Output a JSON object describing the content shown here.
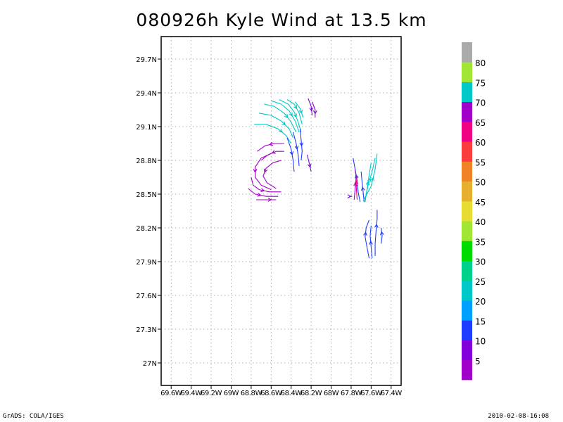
{
  "title": "080926h Kyle Wind at 13.5 km",
  "footer": {
    "left": "GrADS: COLA/IGES",
    "right": "2010-02-08-16:08"
  },
  "chart_data": {
    "type": "streamline",
    "title": "080926h Kyle Wind at 13.5 km",
    "xlim": [
      -69.7,
      -67.3
    ],
    "ylim": [
      26.8,
      29.9
    ],
    "grid": true,
    "x_ticks": [
      {
        "value": -69.6,
        "label": "69.6W"
      },
      {
        "value": -69.4,
        "label": "69.4W"
      },
      {
        "value": -69.2,
        "label": "69.2W"
      },
      {
        "value": -69.0,
        "label": "69W"
      },
      {
        "value": -68.8,
        "label": "68.8W"
      },
      {
        "value": -68.6,
        "label": "68.6W"
      },
      {
        "value": -68.4,
        "label": "68.4W"
      },
      {
        "value": -68.2,
        "label": "68.2W"
      },
      {
        "value": -68.0,
        "label": "68W"
      },
      {
        "value": -67.8,
        "label": "67.8W"
      },
      {
        "value": -67.6,
        "label": "67.6W"
      },
      {
        "value": -67.4,
        "label": "67.4W"
      }
    ],
    "y_ticks": [
      {
        "value": 27.0,
        "label": "27N"
      },
      {
        "value": 27.3,
        "label": "27.3N"
      },
      {
        "value": 27.6,
        "label": "27.6N"
      },
      {
        "value": 27.9,
        "label": "27.9N"
      },
      {
        "value": 28.2,
        "label": "28.2N"
      },
      {
        "value": 28.5,
        "label": "28.5N"
      },
      {
        "value": 28.8,
        "label": "28.8N"
      },
      {
        "value": 29.1,
        "label": "29.1N"
      },
      {
        "value": 29.4,
        "label": "29.4N"
      },
      {
        "value": 29.7,
        "label": "29.7N"
      }
    ],
    "colorbar": [
      {
        "color": "#a000c8",
        "label": "5"
      },
      {
        "color": "#8200dc",
        "label": "10"
      },
      {
        "color": "#1e3cff",
        "label": "15"
      },
      {
        "color": "#00a0ff",
        "label": "20"
      },
      {
        "color": "#00c8c8",
        "label": "25"
      },
      {
        "color": "#00d28c",
        "label": "30"
      },
      {
        "color": "#00dc00",
        "label": "35"
      },
      {
        "color": "#a0e632",
        "label": "40"
      },
      {
        "color": "#e6dc32",
        "label": "45"
      },
      {
        "color": "#e6af2d",
        "label": "50"
      },
      {
        "color": "#f08228",
        "label": "55"
      },
      {
        "color": "#fa3c3c",
        "label": "60"
      },
      {
        "color": "#f00082",
        "label": "65"
      },
      {
        "color": "#a000c8",
        "label": "70"
      },
      {
        "color": "#00c8c8",
        "label": "75"
      },
      {
        "color": "#a0e632",
        "label": "80"
      },
      {
        "color": "#aaaaaa",
        "label": ""
      }
    ],
    "streamlines": [
      {
        "color": "#00c8c8",
        "points": [
          [
            -68.77,
            29.12
          ],
          [
            -68.65,
            29.12
          ],
          [
            -68.53,
            29.08
          ],
          [
            -68.45,
            29.02
          ],
          [
            -68.4,
            28.95
          ]
        ]
      },
      {
        "color": "#00c8c8",
        "points": [
          [
            -68.72,
            29.22
          ],
          [
            -68.6,
            29.2
          ],
          [
            -68.5,
            29.15
          ],
          [
            -68.42,
            29.08
          ],
          [
            -68.38,
            29.0
          ]
        ]
      },
      {
        "color": "#00c8c8",
        "points": [
          [
            -68.67,
            29.3
          ],
          [
            -68.57,
            29.28
          ],
          [
            -68.47,
            29.22
          ],
          [
            -68.4,
            29.14
          ],
          [
            -68.35,
            29.05
          ]
        ]
      },
      {
        "color": "#00c8c8",
        "points": [
          [
            -68.6,
            29.33
          ],
          [
            -68.5,
            29.3
          ],
          [
            -68.42,
            29.24
          ],
          [
            -68.36,
            29.15
          ],
          [
            -68.32,
            29.05
          ]
        ]
      },
      {
        "color": "#00c8c8",
        "points": [
          [
            -68.52,
            29.34
          ],
          [
            -68.43,
            29.3
          ],
          [
            -68.37,
            29.23
          ],
          [
            -68.33,
            29.14
          ],
          [
            -68.3,
            29.05
          ]
        ]
      },
      {
        "color": "#00c8c8",
        "points": [
          [
            -68.44,
            29.34
          ],
          [
            -68.37,
            29.3
          ],
          [
            -68.32,
            29.22
          ],
          [
            -68.29,
            29.12
          ]
        ]
      },
      {
        "color": "#00c8c8",
        "points": [
          [
            -68.36,
            29.32
          ],
          [
            -68.31,
            29.26
          ],
          [
            -68.28,
            29.18
          ]
        ]
      },
      {
        "color": "#8200dc",
        "points": [
          [
            -68.23,
            29.35
          ],
          [
            -68.2,
            29.28
          ],
          [
            -68.19,
            29.2
          ]
        ]
      },
      {
        "color": "#8200dc",
        "points": [
          [
            -68.19,
            29.32
          ],
          [
            -68.16,
            29.25
          ],
          [
            -68.16,
            29.18
          ]
        ]
      },
      {
        "color": "#1e3cff",
        "points": [
          [
            -68.44,
            29.0
          ],
          [
            -68.4,
            28.9
          ],
          [
            -68.38,
            28.8
          ],
          [
            -68.37,
            28.7
          ]
        ]
      },
      {
        "color": "#1e3cff",
        "points": [
          [
            -68.38,
            29.05
          ],
          [
            -68.35,
            28.95
          ],
          [
            -68.33,
            28.85
          ],
          [
            -68.32,
            28.75
          ]
        ]
      },
      {
        "color": "#1e3cff",
        "points": [
          [
            -68.31,
            29.08
          ],
          [
            -68.3,
            28.98
          ],
          [
            -68.29,
            28.88
          ],
          [
            -68.3,
            28.8
          ]
        ]
      },
      {
        "color": "#8200dc",
        "points": [
          [
            -68.24,
            28.85
          ],
          [
            -68.22,
            28.78
          ],
          [
            -68.2,
            28.7
          ]
        ]
      },
      {
        "color": "#a000c8",
        "points": [
          [
            -68.47,
            28.95
          ],
          [
            -68.57,
            28.95
          ],
          [
            -68.66,
            28.93
          ],
          [
            -68.74,
            28.88
          ]
        ]
      },
      {
        "color": "#a000c8",
        "points": [
          [
            -68.47,
            28.88
          ],
          [
            -68.55,
            28.88
          ],
          [
            -68.63,
            28.85
          ],
          [
            -68.7,
            28.8
          ]
        ]
      },
      {
        "color": "#a000c8",
        "points": [
          [
            -68.5,
            28.8
          ],
          [
            -68.58,
            28.78
          ],
          [
            -68.65,
            28.73
          ],
          [
            -68.68,
            28.66
          ],
          [
            -68.64,
            28.6
          ],
          [
            -68.55,
            28.55
          ]
        ]
      },
      {
        "color": "#a000c8",
        "points": [
          [
            -68.6,
            28.86
          ],
          [
            -68.7,
            28.82
          ],
          [
            -68.76,
            28.74
          ],
          [
            -68.76,
            28.65
          ],
          [
            -68.7,
            28.58
          ],
          [
            -68.6,
            28.54
          ]
        ]
      },
      {
        "color": "#a000c8",
        "points": [
          [
            -68.8,
            28.65
          ],
          [
            -68.78,
            28.58
          ],
          [
            -68.72,
            28.54
          ],
          [
            -68.62,
            28.52
          ],
          [
            -68.5,
            28.52
          ]
        ]
      },
      {
        "color": "#a000c8",
        "points": [
          [
            -68.83,
            28.55
          ],
          [
            -68.76,
            28.5
          ],
          [
            -68.65,
            28.48
          ],
          [
            -68.53,
            28.48
          ]
        ]
      },
      {
        "color": "#a000c8",
        "points": [
          [
            -68.75,
            28.45
          ],
          [
            -68.65,
            28.45
          ],
          [
            -68.55,
            28.45
          ]
        ]
      },
      {
        "color": "#1e3cff",
        "points": [
          [
            -67.71,
            28.43
          ],
          [
            -67.73,
            28.52
          ],
          [
            -67.74,
            28.62
          ],
          [
            -67.76,
            28.72
          ],
          [
            -67.78,
            28.82
          ]
        ]
      },
      {
        "color": "#1e3cff",
        "points": [
          [
            -67.67,
            28.43
          ],
          [
            -67.68,
            28.52
          ],
          [
            -67.69,
            28.6
          ],
          [
            -67.7,
            28.7
          ]
        ]
      },
      {
        "color": "#00c8c8",
        "points": [
          [
            -67.66,
            28.43
          ],
          [
            -67.64,
            28.55
          ],
          [
            -67.62,
            28.67
          ],
          [
            -67.6,
            28.78
          ]
        ]
      },
      {
        "color": "#00c8c8",
        "points": [
          [
            -67.66,
            28.45
          ],
          [
            -67.63,
            28.58
          ],
          [
            -67.59,
            28.7
          ],
          [
            -67.56,
            28.82
          ]
        ]
      },
      {
        "color": "#00c8c8",
        "points": [
          [
            -67.68,
            28.44
          ],
          [
            -67.6,
            28.57
          ],
          [
            -67.56,
            28.72
          ],
          [
            -67.54,
            28.86
          ]
        ]
      },
      {
        "color": "#a000c8",
        "points": [
          [
            -67.77,
            28.45
          ],
          [
            -67.76,
            28.55
          ],
          [
            -67.75,
            28.65
          ],
          [
            -67.76,
            28.72
          ]
        ]
      },
      {
        "color": "#f00082",
        "points": [
          [
            -67.74,
            28.45
          ],
          [
            -67.75,
            28.58
          ],
          [
            -67.74,
            28.66
          ]
        ]
      },
      {
        "color": "#8200dc",
        "points": [
          [
            -67.82,
            28.48
          ],
          [
            -67.79,
            28.48
          ]
        ]
      },
      {
        "color": "#1e3cff",
        "points": [
          [
            -67.62,
            27.93
          ],
          [
            -67.64,
            28.02
          ],
          [
            -67.66,
            28.12
          ],
          [
            -67.65,
            28.2
          ],
          [
            -67.62,
            28.27
          ]
        ]
      },
      {
        "color": "#1e3cff",
        "points": [
          [
            -67.59,
            27.93
          ],
          [
            -67.6,
            28.03
          ],
          [
            -67.61,
            28.13
          ],
          [
            -67.6,
            28.22
          ]
        ]
      },
      {
        "color": "#1e3cff",
        "points": [
          [
            -67.56,
            27.95
          ],
          [
            -67.56,
            28.06
          ],
          [
            -67.55,
            28.18
          ],
          [
            -67.54,
            28.28
          ],
          [
            -67.54,
            28.36
          ]
        ]
      },
      {
        "color": "#1e3cff",
        "points": [
          [
            -67.5,
            28.06
          ],
          [
            -67.49,
            28.13
          ],
          [
            -67.5,
            28.2
          ]
        ]
      }
    ]
  }
}
